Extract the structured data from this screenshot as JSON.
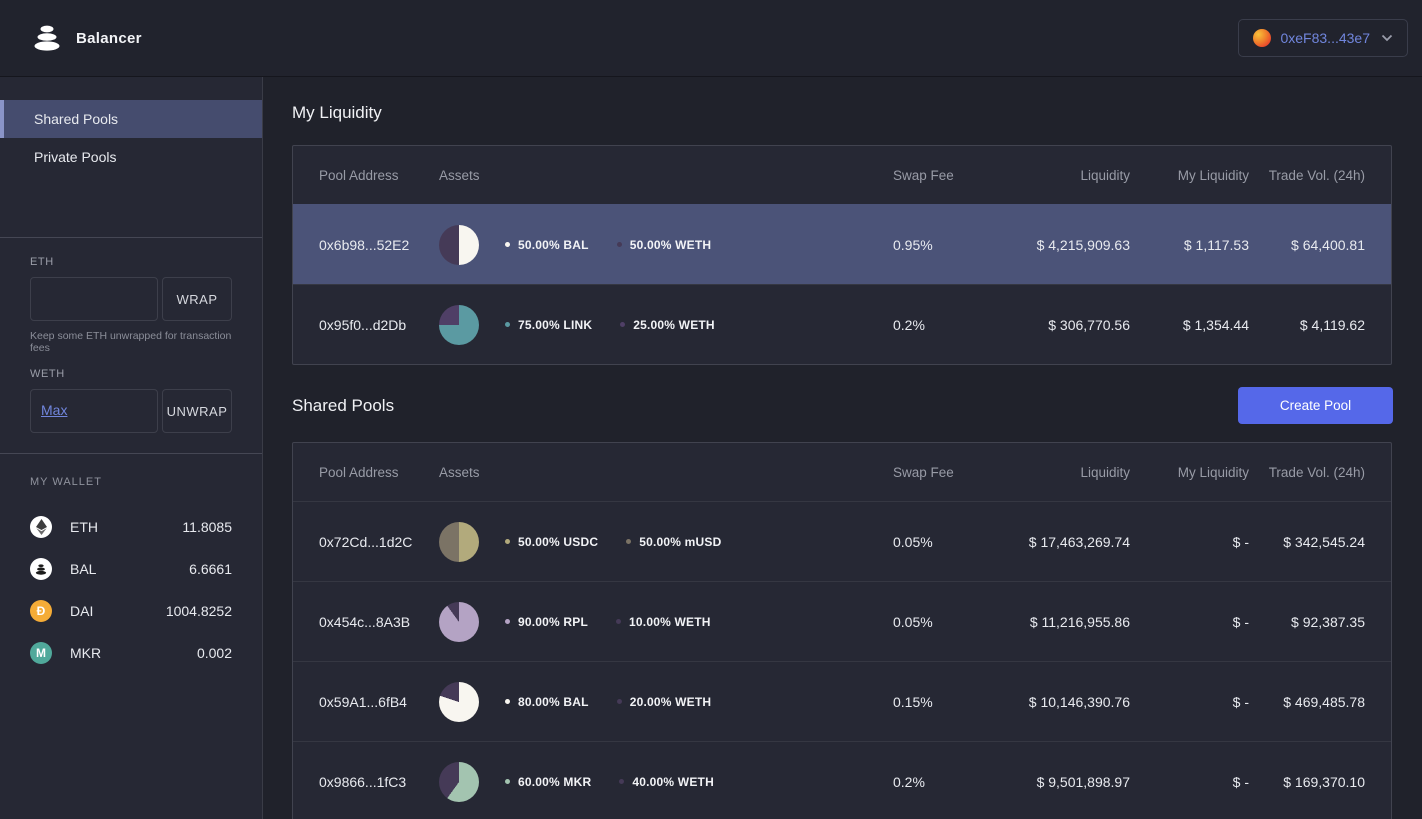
{
  "header": {
    "brand": "Balancer",
    "wallet": {
      "address": "0xeF83...43e7"
    }
  },
  "colors": {
    "accent_button": "#5568e9",
    "link_blue": "#7186dd",
    "highlight_row": "#4b5378",
    "sidebar_active": "#454c6e"
  },
  "sidebar": {
    "nav": [
      {
        "label": "Shared Pools",
        "active": true
      },
      {
        "label": "Private Pools",
        "active": false
      }
    ],
    "wrap": {
      "label": "ETH",
      "input_value": "",
      "button": "WRAP",
      "hint": "Keep some ETH unwrapped for transaction fees"
    },
    "unwrap": {
      "label": "WETH",
      "max_label": "Max",
      "input_value": "",
      "button": "UNWRAP"
    },
    "wallet": {
      "title": "MY WALLET",
      "balances": [
        {
          "token": "ETH",
          "amount": "11.8085",
          "icon": "eth-icon",
          "icon_bg": "#ffffff"
        },
        {
          "token": "BAL",
          "amount": "6.6661",
          "icon": "bal-icon",
          "icon_bg": "#ffffff"
        },
        {
          "token": "DAI",
          "amount": "1004.8252",
          "icon": "dai-icon",
          "icon_bg": "#f5ac37",
          "symbol": "Đ"
        },
        {
          "token": "MKR",
          "amount": "0.002",
          "icon": "mkr-icon",
          "icon_bg": "#50a99b",
          "symbol": "M"
        }
      ]
    }
  },
  "table_columns": [
    "Pool Address",
    "Assets",
    "Swap Fee",
    "Liquidity",
    "My Liquidity",
    "Trade Vol. (24h)"
  ],
  "my_liquidity": {
    "title": "My Liquidity",
    "rows": [
      {
        "address": "0x6b98...52E2",
        "highlighted": true,
        "assets": [
          {
            "share": 50,
            "label": "50.00% BAL",
            "color": "#f8f6f0"
          },
          {
            "share": 50,
            "label": "50.00% WETH",
            "color": "#453a57"
          }
        ],
        "swap_fee": "0.95%",
        "liquidity": "$ 4,215,909.63",
        "my_liquidity": "$ 1,117.53",
        "trade_vol": "$ 64,400.81"
      },
      {
        "address": "0x95f0...d2Db",
        "highlighted": false,
        "assets": [
          {
            "share": 75,
            "label": "75.00% LINK",
            "color": "#5b9aa2"
          },
          {
            "share": 25,
            "label": "25.00% WETH",
            "color": "#4f3f66"
          }
        ],
        "swap_fee": "0.2%",
        "liquidity": "$ 306,770.56",
        "my_liquidity": "$ 1,354.44",
        "trade_vol": "$ 4,119.62"
      }
    ]
  },
  "shared_pools": {
    "title": "Shared Pools",
    "create_button": "Create Pool",
    "rows": [
      {
        "address": "0x72Cd...1d2C",
        "highlighted": false,
        "assets": [
          {
            "share": 50,
            "label": "50.00% USDC",
            "color": "#b2aa7c"
          },
          {
            "share": 50,
            "label": "50.00% mUSD",
            "color": "#7b7365"
          }
        ],
        "swap_fee": "0.05%",
        "liquidity": "$ 17,463,269.74",
        "my_liquidity": "$ -",
        "trade_vol": "$ 342,545.24"
      },
      {
        "address": "0x454c...8A3B",
        "highlighted": false,
        "assets": [
          {
            "share": 90,
            "label": "90.00% RPL",
            "color": "#b4a3c4"
          },
          {
            "share": 10,
            "label": "10.00% WETH",
            "color": "#453a57"
          }
        ],
        "swap_fee": "0.05%",
        "liquidity": "$ 11,216,955.86",
        "my_liquidity": "$ -",
        "trade_vol": "$ 92,387.35"
      },
      {
        "address": "0x59A1...6fB4",
        "highlighted": false,
        "assets": [
          {
            "share": 80,
            "label": "80.00% BAL",
            "color": "#f8f6f0"
          },
          {
            "share": 20,
            "label": "20.00% WETH",
            "color": "#453a57"
          }
        ],
        "swap_fee": "0.15%",
        "liquidity": "$ 10,146,390.76",
        "my_liquidity": "$ -",
        "trade_vol": "$ 469,485.78"
      },
      {
        "address": "0x9866...1fC3",
        "highlighted": false,
        "assets": [
          {
            "share": 60,
            "label": "60.00% MKR",
            "color": "#a3c4b0"
          },
          {
            "share": 40,
            "label": "40.00% WETH",
            "color": "#453a57"
          }
        ],
        "swap_fee": "0.2%",
        "liquidity": "$ 9,501,898.97",
        "my_liquidity": "$ -",
        "trade_vol": "$ 169,370.10"
      }
    ]
  }
}
